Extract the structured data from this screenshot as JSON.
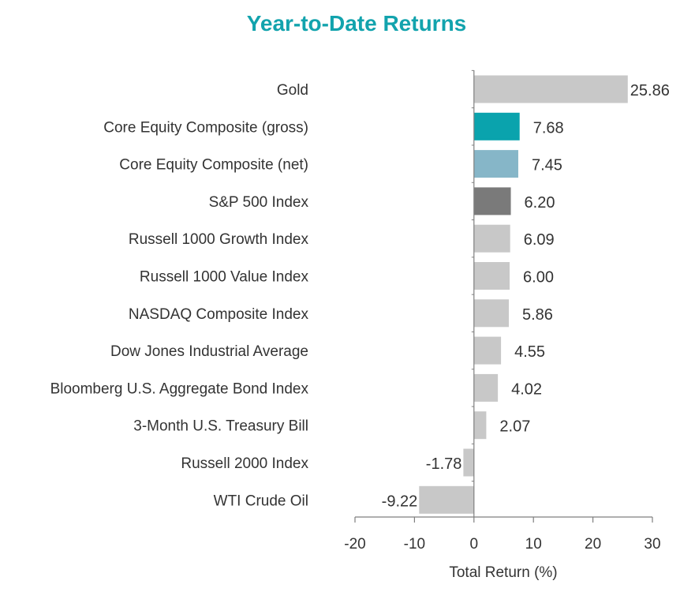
{
  "chart_data": {
    "type": "bar",
    "orientation": "horizontal",
    "title": "Year-to-Date Returns",
    "xlabel": "Total Return (%)",
    "ylabel": "",
    "xlim": [
      -20,
      30
    ],
    "xticks": [
      -20,
      -10,
      0,
      10,
      20,
      30
    ],
    "grid": false,
    "categories": [
      "Gold",
      "Core Equity Composite (gross)",
      "Core Equity Composite (net)",
      "S&P 500 Index",
      "Russell 1000 Growth Index",
      "Russell 1000 Value Index",
      "NASDAQ Composite Index",
      "Dow Jones Industrial Average",
      "Bloomberg U.S. Aggregate Bond Index",
      "3-Month U.S. Treasury Bill",
      "Russell 2000 Index",
      "WTI Crude Oil"
    ],
    "values": [
      25.86,
      7.68,
      7.45,
      6.2,
      6.09,
      6.0,
      5.86,
      4.55,
      4.02,
      2.07,
      -1.78,
      -9.22
    ],
    "value_labels": [
      "25.86",
      "7.68",
      "7.45",
      "6.20",
      "6.09",
      "6.00",
      "5.86",
      "4.55",
      "4.02",
      "2.07",
      "-1.78",
      "-9.22"
    ],
    "colors": [
      "#c8c8c8",
      "#0aa3ad",
      "#86b6c8",
      "#7a7a7a",
      "#c8c8c8",
      "#c8c8c8",
      "#c8c8c8",
      "#c8c8c8",
      "#c8c8c8",
      "#c8c8c8",
      "#c8c8c8",
      "#c8c8c8"
    ],
    "title_color": "#12a3ad"
  }
}
